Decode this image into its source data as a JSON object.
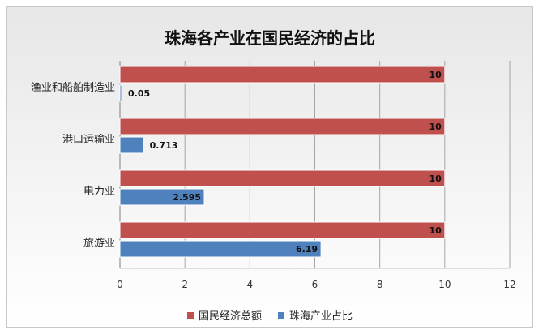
{
  "chart_data": {
    "type": "bar",
    "orientation": "horizontal",
    "title": "珠海各产业在国民经济的占比",
    "categories": [
      "渔业和船舶制造业",
      "港口运输业",
      "电力业",
      "旅游业"
    ],
    "series": [
      {
        "name": "国民经济总额",
        "values": [
          10,
          10,
          10,
          10
        ],
        "labels": [
          "10",
          "10",
          "10",
          "10"
        ],
        "color": "#c0504d"
      },
      {
        "name": "珠海产业占比",
        "values": [
          0.05,
          0.713,
          2.595,
          6.19
        ],
        "labels": [
          "0.05",
          "0.713",
          "2.595",
          "6.19"
        ],
        "color": "#4f81bd"
      }
    ],
    "xlim": [
      0,
      12
    ],
    "xticks": [
      0,
      2,
      4,
      6,
      8,
      10,
      12
    ],
    "grid": true,
    "legend_position": "bottom"
  }
}
